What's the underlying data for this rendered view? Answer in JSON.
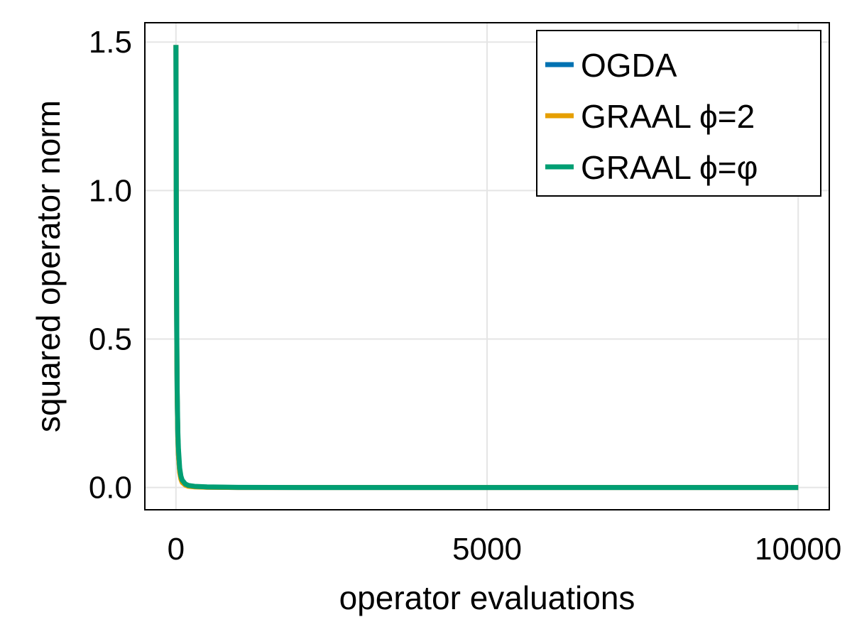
{
  "chart_data": {
    "type": "line",
    "title": "",
    "xlabel": "operator evaluations",
    "ylabel": "squared operator norm",
    "xlim": [
      -500,
      10500
    ],
    "ylim": [
      -0.075,
      1.565
    ],
    "xticks": [
      0,
      5000,
      10000
    ],
    "xtick_labels": [
      "0",
      "5000",
      "10000"
    ],
    "yticks": [
      0.0,
      0.5,
      1.0,
      1.5
    ],
    "ytick_labels": [
      "0.0",
      "0.5",
      "1.0",
      "1.5"
    ],
    "grid": true,
    "legend_position": "top-right",
    "series": [
      {
        "name": "OGDA",
        "color": "#0072b2",
        "x": [
          0,
          5,
          10,
          15,
          20,
          30,
          40,
          60,
          80,
          100,
          150,
          200,
          300,
          500,
          1000,
          2000,
          5000,
          10000
        ],
        "y": [
          1.49,
          0.95,
          0.62,
          0.42,
          0.3,
          0.17,
          0.11,
          0.055,
          0.032,
          0.021,
          0.01,
          0.006,
          0.003,
          0.001,
          0.0,
          0.0,
          0.0,
          0.0
        ]
      },
      {
        "name": "GRAAL ϕ=2",
        "color": "#e69f00",
        "x": [
          0,
          5,
          10,
          15,
          20,
          30,
          40,
          60,
          80,
          100,
          150,
          200,
          300,
          500,
          1000,
          2000,
          5000,
          10000
        ],
        "y": [
          1.49,
          0.96,
          0.63,
          0.43,
          0.3,
          0.17,
          0.11,
          0.05,
          0.028,
          0.017,
          0.008,
          0.004,
          0.002,
          0.001,
          0.0,
          0.0,
          0.0,
          0.0
        ]
      },
      {
        "name": "GRAAL ϕ=φ",
        "color": "#009e73",
        "x": [
          0,
          5,
          10,
          15,
          20,
          30,
          40,
          60,
          80,
          100,
          150,
          200,
          300,
          500,
          1000,
          2000,
          5000,
          10000
        ],
        "y": [
          1.49,
          1.0,
          0.68,
          0.47,
          0.33,
          0.19,
          0.13,
          0.065,
          0.038,
          0.025,
          0.012,
          0.007,
          0.004,
          0.002,
          0.0005,
          0.0,
          0.0,
          0.0
        ]
      }
    ]
  }
}
